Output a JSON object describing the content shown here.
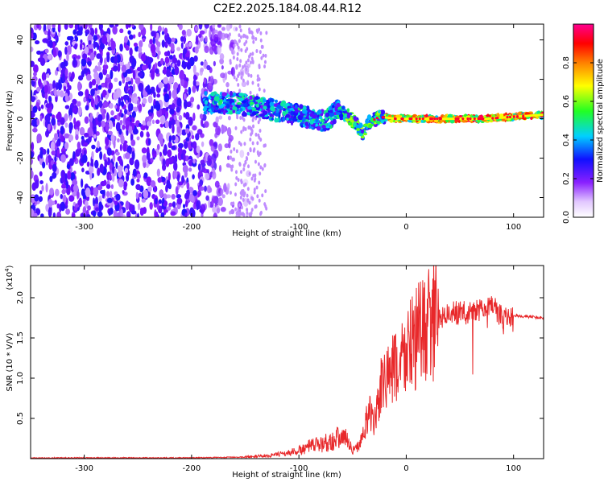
{
  "title": "C2E2.2025.184.08.44.R12",
  "chart_data": [
    {
      "type": "heatmap",
      "xlabel": "Height of straight line (km)",
      "ylabel": "Frequency (Hz)",
      "xlim": [
        -350,
        128
      ],
      "ylim": [
        -50,
        48
      ],
      "xticks": [
        -300,
        -200,
        -100,
        0,
        100
      ],
      "yticks": [
        -40,
        -20,
        0,
        20,
        40
      ],
      "colorbar": {
        "label": "Normalized spectral amplitude",
        "range": [
          0,
          1
        ],
        "ticks": [
          "0.0",
          "0.2",
          "0.4",
          "0.6",
          "0.8"
        ],
        "colormap": [
          "#ffffff",
          "#7a10ff",
          "#0a10ff",
          "#00d0ff",
          "#22ff22",
          "#ffff00",
          "#ff8000",
          "#ff0000",
          "#ff0090"
        ]
      },
      "features": {
        "noise_region_x": [
          -350,
          -150
        ],
        "noise_amplitude": 0.15,
        "signal_trace": {
          "x": [
            -185,
            -160,
            -140,
            -120,
            -100,
            -85,
            -75,
            -65,
            -55,
            -45,
            -40,
            -35,
            -25,
            -10,
            0,
            25,
            50,
            75,
            100,
            128
          ],
          "freq": [
            8,
            8,
            6,
            4,
            2,
            0,
            -2,
            4,
            2,
            -4,
            -8,
            -2,
            1,
            0,
            0,
            0,
            0,
            0,
            1,
            2
          ]
        }
      }
    },
    {
      "type": "line",
      "xlabel": "Height of straight line (km)",
      "ylabel": "SNR (10 * V/V)",
      "yscale_label": "(x10^4)",
      "xlim": [
        -350,
        128
      ],
      "ylim": [
        0,
        2.4
      ],
      "xticks": [
        -300,
        -200,
        -100,
        0,
        100
      ],
      "yticks": [
        0.5,
        1.0,
        1.5,
        2.0
      ],
      "color": "#e8282a",
      "series": [
        {
          "x": [
            -350,
            -300,
            -250,
            -200,
            -150,
            -125,
            -110,
            -100,
            -90,
            -80,
            -70,
            -60,
            -55,
            -50,
            -45,
            -40,
            -35,
            -30,
            -25,
            -20,
            -15,
            -10,
            -5,
            0,
            10,
            20,
            30,
            40,
            50,
            60,
            70,
            80,
            90,
            100,
            110,
            128
          ],
          "values": [
            0.01,
            0.01,
            0.01,
            0.01,
            0.02,
            0.04,
            0.07,
            0.1,
            0.15,
            0.18,
            0.22,
            0.28,
            0.25,
            0.1,
            0.15,
            0.3,
            0.6,
            0.4,
            0.8,
            1.0,
            1.05,
            1.1,
            1.2,
            1.35,
            1.5,
            1.65,
            1.75,
            1.8,
            1.82,
            1.8,
            1.85,
            1.9,
            1.75,
            1.78,
            1.77,
            1.75
          ]
        }
      ]
    }
  ]
}
